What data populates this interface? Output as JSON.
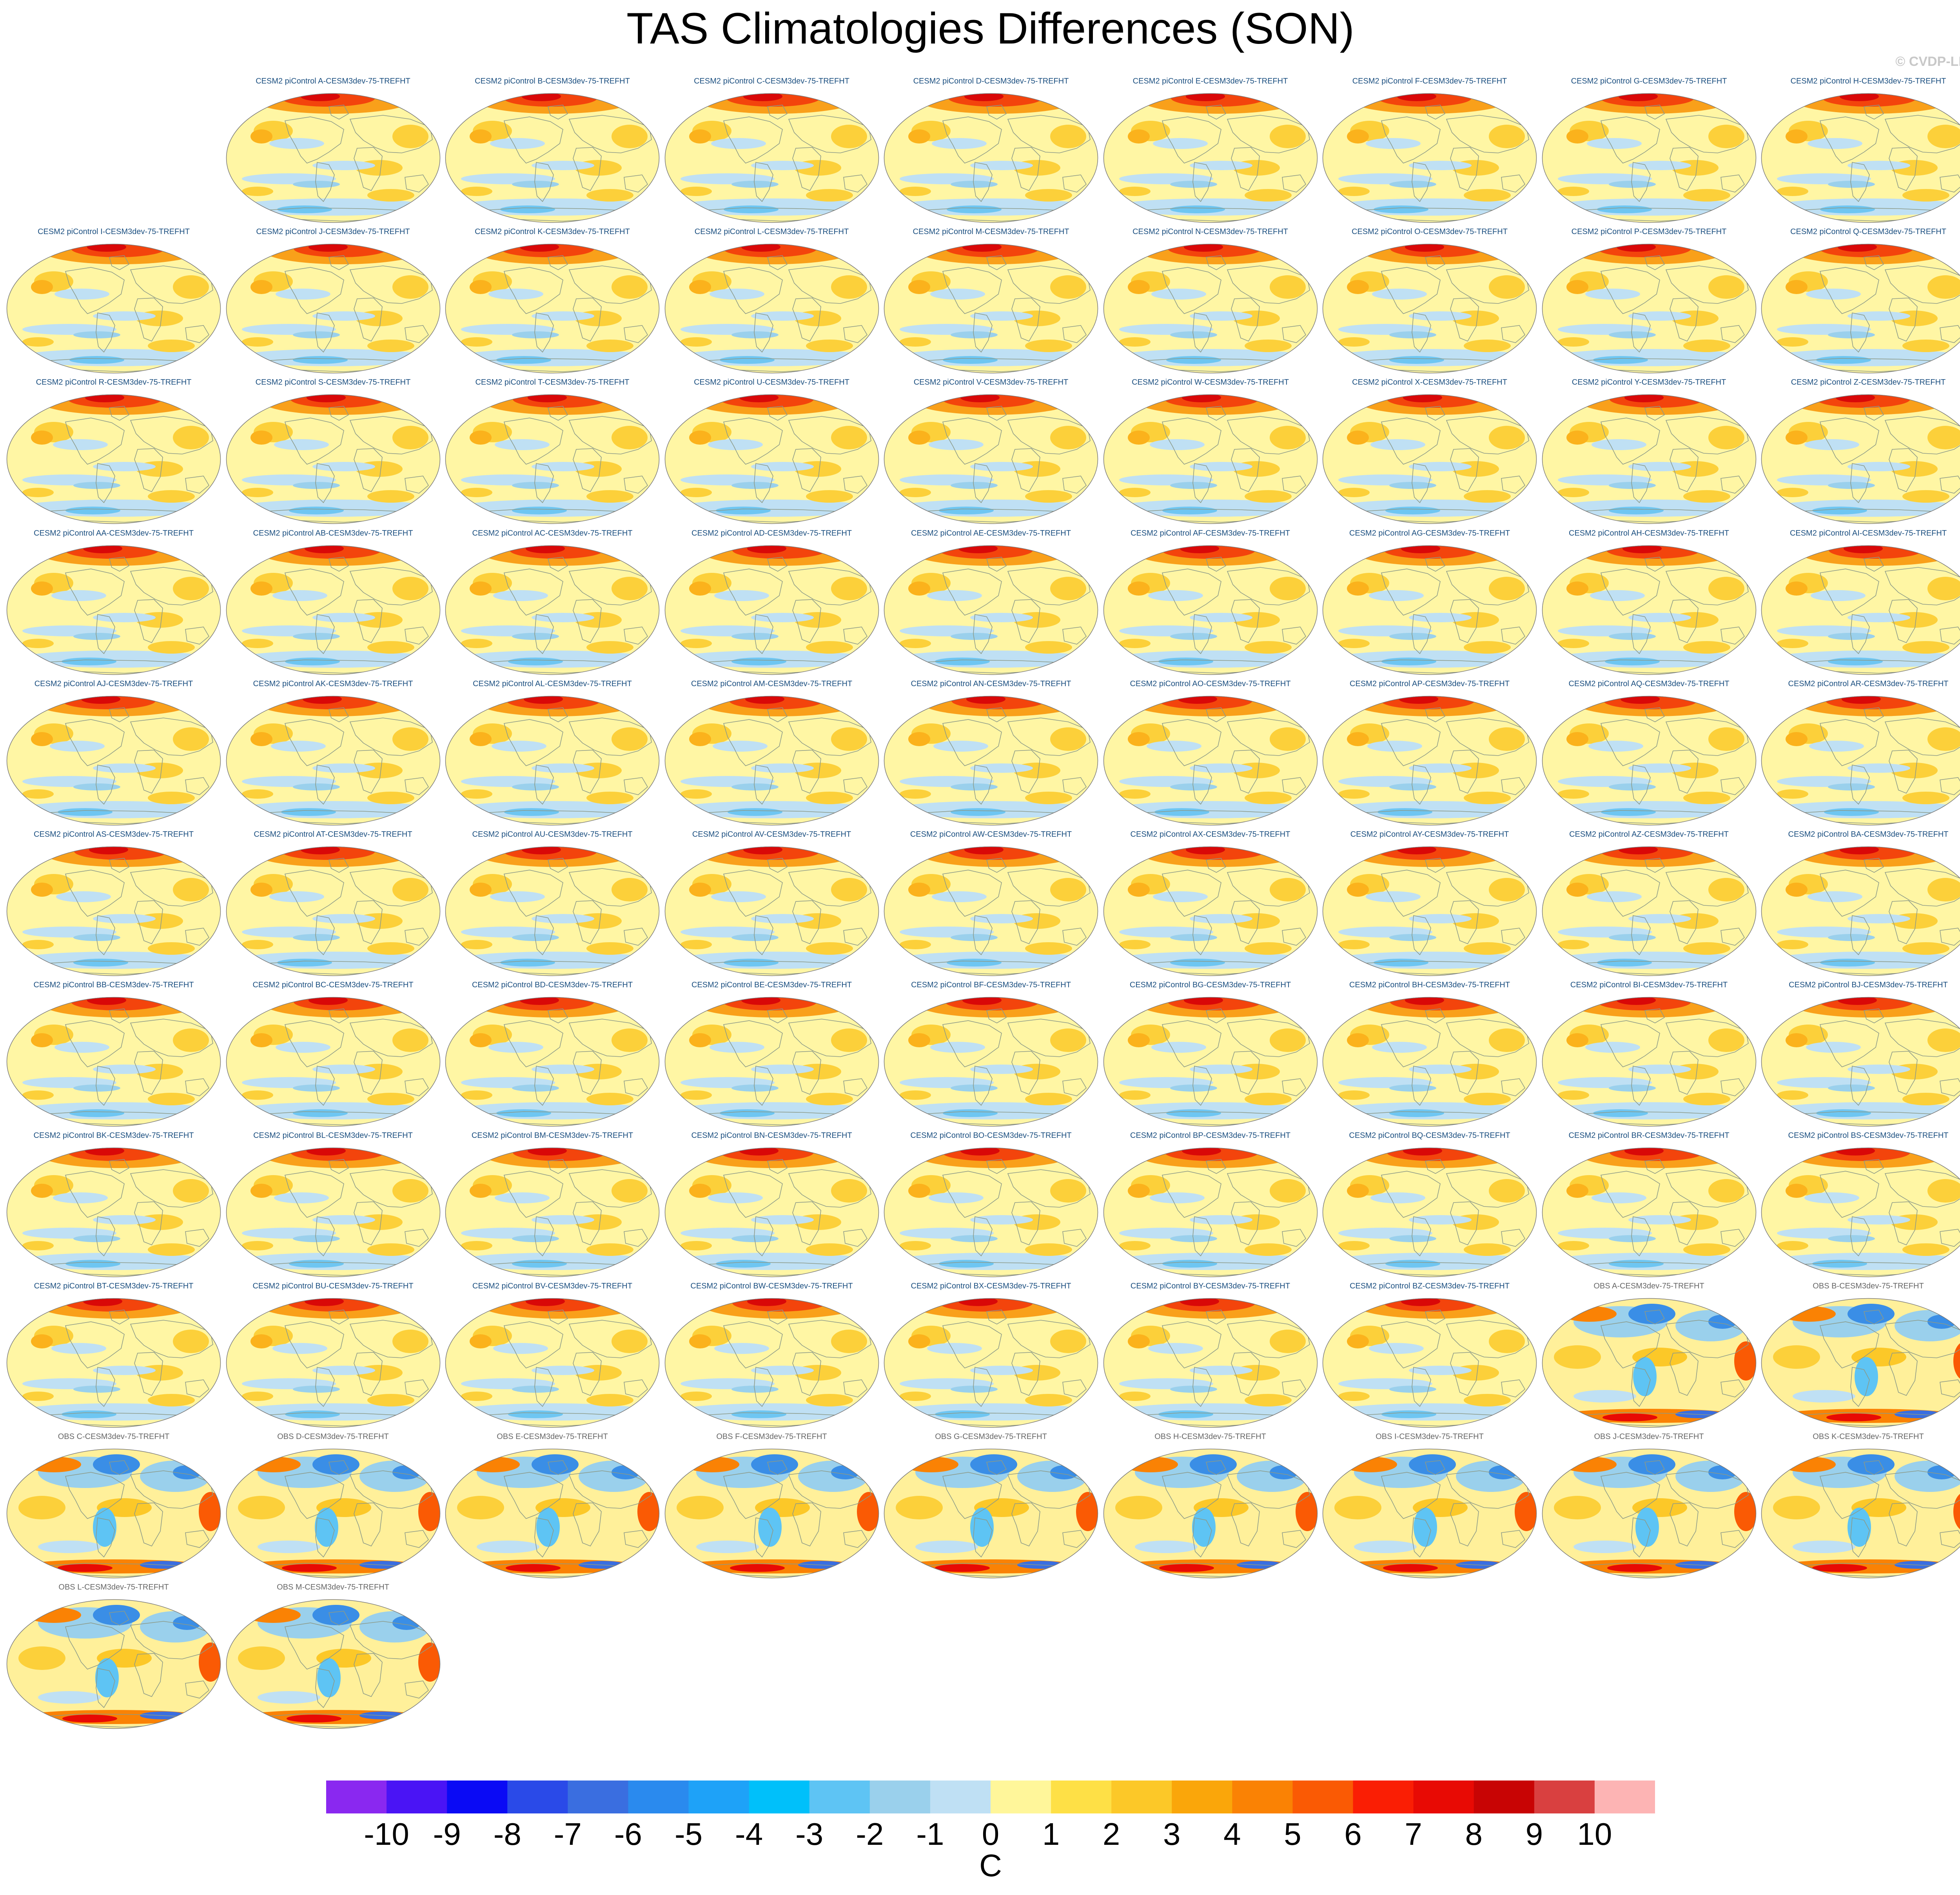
{
  "title": "TAS Climatologies Differences (SON)",
  "credit": "© CVDP-LE",
  "panels": [
    {
      "label": "CESM2 piControl A-CESM3dev-75-TREFHT",
      "kind": "model"
    },
    {
      "label": "CESM2 piControl B-CESM3dev-75-TREFHT",
      "kind": "model"
    },
    {
      "label": "CESM2 piControl C-CESM3dev-75-TREFHT",
      "kind": "model"
    },
    {
      "label": "CESM2 piControl D-CESM3dev-75-TREFHT",
      "kind": "model"
    },
    {
      "label": "CESM2 piControl E-CESM3dev-75-TREFHT",
      "kind": "model"
    },
    {
      "label": "CESM2 piControl F-CESM3dev-75-TREFHT",
      "kind": "model"
    },
    {
      "label": "CESM2 piControl G-CESM3dev-75-TREFHT",
      "kind": "model"
    },
    {
      "label": "CESM2 piControl H-CESM3dev-75-TREFHT",
      "kind": "model"
    },
    {
      "label": "CESM2 piControl I-CESM3dev-75-TREFHT",
      "kind": "model"
    },
    {
      "label": "CESM2 piControl J-CESM3dev-75-TREFHT",
      "kind": "model"
    },
    {
      "label": "CESM2 piControl K-CESM3dev-75-TREFHT",
      "kind": "model"
    },
    {
      "label": "CESM2 piControl L-CESM3dev-75-TREFHT",
      "kind": "model"
    },
    {
      "label": "CESM2 piControl M-CESM3dev-75-TREFHT",
      "kind": "model"
    },
    {
      "label": "CESM2 piControl N-CESM3dev-75-TREFHT",
      "kind": "model"
    },
    {
      "label": "CESM2 piControl O-CESM3dev-75-TREFHT",
      "kind": "model"
    },
    {
      "label": "CESM2 piControl P-CESM3dev-75-TREFHT",
      "kind": "model"
    },
    {
      "label": "CESM2 piControl Q-CESM3dev-75-TREFHT",
      "kind": "model"
    },
    {
      "label": "CESM2 piControl R-CESM3dev-75-TREFHT",
      "kind": "model"
    },
    {
      "label": "CESM2 piControl S-CESM3dev-75-TREFHT",
      "kind": "model"
    },
    {
      "label": "CESM2 piControl T-CESM3dev-75-TREFHT",
      "kind": "model"
    },
    {
      "label": "CESM2 piControl U-CESM3dev-75-TREFHT",
      "kind": "model"
    },
    {
      "label": "CESM2 piControl V-CESM3dev-75-TREFHT",
      "kind": "model"
    },
    {
      "label": "CESM2 piControl W-CESM3dev-75-TREFHT",
      "kind": "model"
    },
    {
      "label": "CESM2 piControl X-CESM3dev-75-TREFHT",
      "kind": "model"
    },
    {
      "label": "CESM2 piControl Y-CESM3dev-75-TREFHT",
      "kind": "model"
    },
    {
      "label": "CESM2 piControl Z-CESM3dev-75-TREFHT",
      "kind": "model"
    },
    {
      "label": "CESM2 piControl AA-CESM3dev-75-TREFHT",
      "kind": "model"
    },
    {
      "label": "CESM2 piControl AB-CESM3dev-75-TREFHT",
      "kind": "model"
    },
    {
      "label": "CESM2 piControl AC-CESM3dev-75-TREFHT",
      "kind": "model"
    },
    {
      "label": "CESM2 piControl AD-CESM3dev-75-TREFHT",
      "kind": "model"
    },
    {
      "label": "CESM2 piControl AE-CESM3dev-75-TREFHT",
      "kind": "model"
    },
    {
      "label": "CESM2 piControl AF-CESM3dev-75-TREFHT",
      "kind": "model"
    },
    {
      "label": "CESM2 piControl AG-CESM3dev-75-TREFHT",
      "kind": "model"
    },
    {
      "label": "CESM2 piControl AH-CESM3dev-75-TREFHT",
      "kind": "model"
    },
    {
      "label": "CESM2 piControl AI-CESM3dev-75-TREFHT",
      "kind": "model"
    },
    {
      "label": "CESM2 piControl AJ-CESM3dev-75-TREFHT",
      "kind": "model"
    },
    {
      "label": "CESM2 piControl AK-CESM3dev-75-TREFHT",
      "kind": "model"
    },
    {
      "label": "CESM2 piControl AL-CESM3dev-75-TREFHT",
      "kind": "model"
    },
    {
      "label": "CESM2 piControl AM-CESM3dev-75-TREFHT",
      "kind": "model"
    },
    {
      "label": "CESM2 piControl AN-CESM3dev-75-TREFHT",
      "kind": "model"
    },
    {
      "label": "CESM2 piControl AO-CESM3dev-75-TREFHT",
      "kind": "model"
    },
    {
      "label": "CESM2 piControl AP-CESM3dev-75-TREFHT",
      "kind": "model"
    },
    {
      "label": "CESM2 piControl AQ-CESM3dev-75-TREFHT",
      "kind": "model"
    },
    {
      "label": "CESM2 piControl AR-CESM3dev-75-TREFHT",
      "kind": "model"
    },
    {
      "label": "CESM2 piControl AS-CESM3dev-75-TREFHT",
      "kind": "model"
    },
    {
      "label": "CESM2 piControl AT-CESM3dev-75-TREFHT",
      "kind": "model"
    },
    {
      "label": "CESM2 piControl AU-CESM3dev-75-TREFHT",
      "kind": "model"
    },
    {
      "label": "CESM2 piControl AV-CESM3dev-75-TREFHT",
      "kind": "model"
    },
    {
      "label": "CESM2 piControl AW-CESM3dev-75-TREFHT",
      "kind": "model"
    },
    {
      "label": "CESM2 piControl AX-CESM3dev-75-TREFHT",
      "kind": "model"
    },
    {
      "label": "CESM2 piControl AY-CESM3dev-75-TREFHT",
      "kind": "model"
    },
    {
      "label": "CESM2 piControl AZ-CESM3dev-75-TREFHT",
      "kind": "model"
    },
    {
      "label": "CESM2 piControl BA-CESM3dev-75-TREFHT",
      "kind": "model"
    },
    {
      "label": "CESM2 piControl BB-CESM3dev-75-TREFHT",
      "kind": "model"
    },
    {
      "label": "CESM2 piControl BC-CESM3dev-75-TREFHT",
      "kind": "model"
    },
    {
      "label": "CESM2 piControl BD-CESM3dev-75-TREFHT",
      "kind": "model"
    },
    {
      "label": "CESM2 piControl BE-CESM3dev-75-TREFHT",
      "kind": "model"
    },
    {
      "label": "CESM2 piControl BF-CESM3dev-75-TREFHT",
      "kind": "model"
    },
    {
      "label": "CESM2 piControl BG-CESM3dev-75-TREFHT",
      "kind": "model"
    },
    {
      "label": "CESM2 piControl BH-CESM3dev-75-TREFHT",
      "kind": "model"
    },
    {
      "label": "CESM2 piControl BI-CESM3dev-75-TREFHT",
      "kind": "model"
    },
    {
      "label": "CESM2 piControl BJ-CESM3dev-75-TREFHT",
      "kind": "model"
    },
    {
      "label": "CESM2 piControl BK-CESM3dev-75-TREFHT",
      "kind": "model"
    },
    {
      "label": "CESM2 piControl BL-CESM3dev-75-TREFHT",
      "kind": "model"
    },
    {
      "label": "CESM2 piControl BM-CESM3dev-75-TREFHT",
      "kind": "model"
    },
    {
      "label": "CESM2 piControl BN-CESM3dev-75-TREFHT",
      "kind": "model"
    },
    {
      "label": "CESM2 piControl BO-CESM3dev-75-TREFHT",
      "kind": "model"
    },
    {
      "label": "CESM2 piControl BP-CESM3dev-75-TREFHT",
      "kind": "model"
    },
    {
      "label": "CESM2 piControl BQ-CESM3dev-75-TREFHT",
      "kind": "model"
    },
    {
      "label": "CESM2 piControl BR-CESM3dev-75-TREFHT",
      "kind": "model"
    },
    {
      "label": "CESM2 piControl BS-CESM3dev-75-TREFHT",
      "kind": "model"
    },
    {
      "label": "CESM2 piControl BT-CESM3dev-75-TREFHT",
      "kind": "model"
    },
    {
      "label": "CESM2 piControl BU-CESM3dev-75-TREFHT",
      "kind": "model"
    },
    {
      "label": "CESM2 piControl BV-CESM3dev-75-TREFHT",
      "kind": "model"
    },
    {
      "label": "CESM2 piControl BW-CESM3dev-75-TREFHT",
      "kind": "model"
    },
    {
      "label": "CESM2 piControl BX-CESM3dev-75-TREFHT",
      "kind": "model"
    },
    {
      "label": "CESM2 piControl BY-CESM3dev-75-TREFHT",
      "kind": "model"
    },
    {
      "label": "CESM2 piControl BZ-CESM3dev-75-TREFHT",
      "kind": "model"
    },
    {
      "label": "OBS A-CESM3dev-75-TREFHT",
      "kind": "obs"
    },
    {
      "label": "OBS B-CESM3dev-75-TREFHT",
      "kind": "obs"
    },
    {
      "label": "OBS C-CESM3dev-75-TREFHT",
      "kind": "obs"
    },
    {
      "label": "OBS D-CESM3dev-75-TREFHT",
      "kind": "obs"
    },
    {
      "label": "OBS E-CESM3dev-75-TREFHT",
      "kind": "obs"
    },
    {
      "label": "OBS F-CESM3dev-75-TREFHT",
      "kind": "obs"
    },
    {
      "label": "OBS G-CESM3dev-75-TREFHT",
      "kind": "obs"
    },
    {
      "label": "OBS H-CESM3dev-75-TREFHT",
      "kind": "obs"
    },
    {
      "label": "OBS I-CESM3dev-75-TREFHT",
      "kind": "obs"
    },
    {
      "label": "OBS J-CESM3dev-75-TREFHT",
      "kind": "obs"
    },
    {
      "label": "OBS K-CESM3dev-75-TREFHT",
      "kind": "obs"
    },
    {
      "label": "OBS L-CESM3dev-75-TREFHT",
      "kind": "obs"
    },
    {
      "label": "OBS M-CESM3dev-75-TREFHT",
      "kind": "obs"
    }
  ],
  "colorbar": {
    "units": "C",
    "labels": [
      "-10",
      "-9",
      "-8",
      "-7",
      "-6",
      "-5",
      "-4",
      "-3",
      "-2",
      "-1",
      "0",
      "1",
      "2",
      "3",
      "4",
      "5",
      "6",
      "7",
      "8",
      "9",
      "10"
    ],
    "colors": [
      "#8a28f0",
      "#4a14f5",
      "#0a0af5",
      "#2a4ae8",
      "#3a6ee0",
      "#2a8aee",
      "#1ea2f8",
      "#00c0fa",
      "#5ec4f4",
      "#9ad0ec",
      "#bfe0f4",
      "#fff69a",
      "#fee046",
      "#fcc828",
      "#faa60a",
      "#fa8204",
      "#fa5a04",
      "#fa1e04",
      "#e80a04",
      "#c80404",
      "#d94040",
      "#fdb4b4"
    ]
  }
}
